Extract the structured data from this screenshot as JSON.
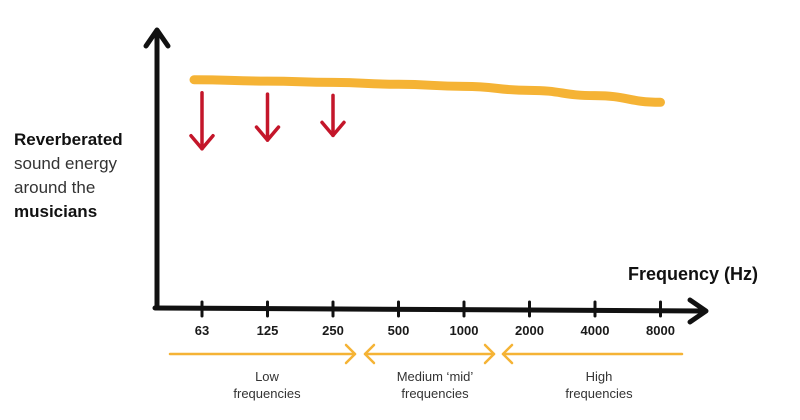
{
  "chart_data": {
    "type": "line",
    "xlabel": "Frequency (Hz)",
    "ylabel": {
      "line1": "Reverberated",
      "line2": "sound energy",
      "line3": "around the",
      "line4": "musicians"
    },
    "categories": [
      "63",
      "125",
      "250",
      "500",
      "1000",
      "2000",
      "4000",
      "8000"
    ],
    "series": [
      {
        "values": [
          0.85,
          0.845,
          0.84,
          0.833,
          0.825,
          0.81,
          0.79,
          0.765
        ],
        "color": "#f5b335"
      }
    ],
    "reduction_arrows": [
      "63",
      "125",
      "250"
    ],
    "arrow_color": "#c4162a",
    "ylim": [
      0,
      1
    ],
    "bands": [
      {
        "line1": "Low",
        "line2": "frequencies"
      },
      {
        "line1": "Medium ‘mid’",
        "line2": "frequencies"
      },
      {
        "line1": "High",
        "line2": "frequencies"
      }
    ]
  }
}
